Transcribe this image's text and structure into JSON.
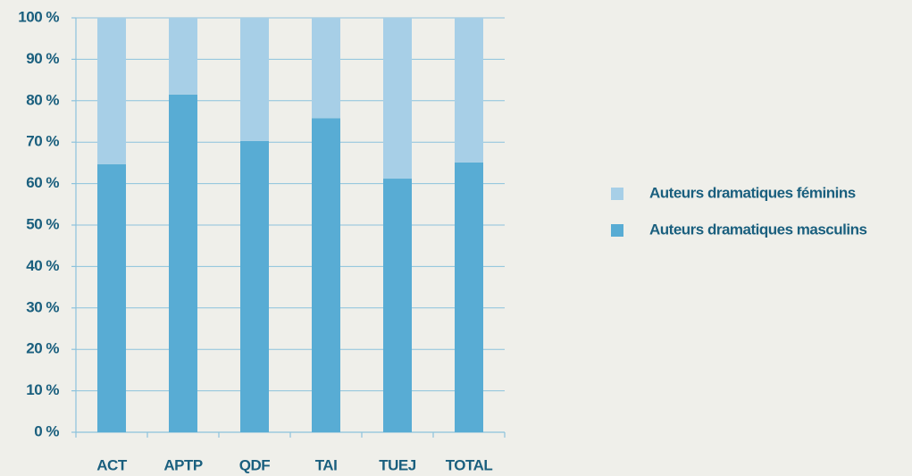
{
  "chart_data": {
    "type": "stacked_bar",
    "categories": [
      "ACT",
      "APTP",
      "QDF",
      "TAI",
      "TUEJ",
      "TOTAL"
    ],
    "series": [
      {
        "name": "Auteurs dramatiques masculins",
        "color": "#58acd4",
        "values": [
          64.7,
          81.5,
          70.3,
          75.8,
          61.2,
          65.1
        ]
      },
      {
        "name": "Auteurs dramatiques féminins",
        "color": "#a7cfe7",
        "values": [
          35.3,
          18.5,
          29.7,
          24.2,
          38.8,
          34.9
        ]
      }
    ],
    "ylim": [
      0,
      100
    ],
    "yticks": [
      {
        "value": 0,
        "label": "0 %"
      },
      {
        "value": 10,
        "label": "10 %"
      },
      {
        "value": 20,
        "label": "20 %"
      },
      {
        "value": 30,
        "label": "30 %"
      },
      {
        "value": 40,
        "label": "40 %"
      },
      {
        "value": 50,
        "label": "50 %"
      },
      {
        "value": 60,
        "label": "60 %"
      },
      {
        "value": 70,
        "label": "70 %"
      },
      {
        "value": 80,
        "label": "80 %"
      },
      {
        "value": 90,
        "label": "90 %"
      },
      {
        "value": 100,
        "label": "100 %"
      }
    ],
    "grid": true,
    "legend": "right"
  }
}
